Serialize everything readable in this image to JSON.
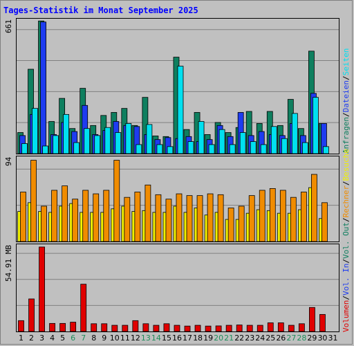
{
  "title": "Tages-Statistik im Monat September 2025",
  "colors": {
    "anfragen": "#0f7f5f",
    "dateien": "#1e3cf0",
    "seiten": "#00e0f0",
    "besuche": "#f0f000",
    "rechner": "#f08c00",
    "volumen": "#e00000",
    "weekend": "#1e8c5a",
    "weekday": "#000000",
    "grid": "#808080"
  },
  "legend_top": [
    {
      "text": "Anfragen",
      "color": "#0f7f5f"
    },
    {
      "text": "/",
      "color": "#000000"
    },
    {
      "text": "Dateien",
      "color": "#1e3cf0"
    },
    {
      "text": "/",
      "color": "#000000"
    },
    {
      "text": "Seiten",
      "color": "#00e0f0"
    }
  ],
  "legend_bottom": [
    {
      "text": "Volumen",
      "color": "#e00000"
    },
    {
      "text": "/",
      "color": "#000000"
    },
    {
      "text": "Vol. In",
      "color": "#1e3cf0"
    },
    {
      "text": "/",
      "color": "#000000"
    },
    {
      "text": "Vol. Out",
      "color": "#0f7f5f"
    },
    {
      "text": "/",
      "color": "#000000"
    },
    {
      "text": "Rechner",
      "color": "#f08c00"
    },
    {
      "text": "/",
      "color": "#000000"
    },
    {
      "text": "Besuche",
      "color": "#f0f000"
    }
  ],
  "ymax_labels": {
    "panel1": "661",
    "panel2": "94",
    "panel3": "54.91 MB"
  },
  "days": [
    "1",
    "2",
    "3",
    "4",
    "5",
    "6",
    "7",
    "8",
    "9",
    "10",
    "11",
    "12",
    "13",
    "14",
    "15",
    "16",
    "17",
    "18",
    "19",
    "20",
    "21",
    "22",
    "23",
    "24",
    "25",
    "26",
    "27",
    "28",
    "29",
    "30",
    "31"
  ],
  "weekend_days": [
    6,
    7,
    13,
    14,
    20,
    21,
    27,
    28
  ],
  "chart_data": [
    {
      "type": "bar",
      "name": "anfragen-dateien-seiten",
      "ylim": [
        0,
        661
      ],
      "grid": true,
      "series": [
        {
          "name": "Anfragen",
          "values": [
            105,
            420,
            660,
            160,
            275,
            125,
            325,
            140,
            190,
            205,
            225,
            140,
            280,
            88,
            85,
            480,
            120,
            205,
            95,
            155,
            105,
            130,
            210,
            150,
            210,
            140,
            270,
            125,
            510,
            150
          ]
        },
        {
          "name": "Dateien",
          "values": [
            90,
            195,
            655,
            95,
            155,
            110,
            240,
            95,
            115,
            160,
            140,
            135,
            95,
            70,
            80,
            75,
            85,
            60,
            70,
            140,
            85,
            205,
            90,
            110,
            95,
            90,
            150,
            90,
            300,
            150
          ]
        },
        {
          "name": "Seiten",
          "values": [
            50,
            225,
            38,
            90,
            195,
            55,
            125,
            90,
            130,
            105,
            150,
            45,
            145,
            45,
            35,
            435,
            60,
            160,
            45,
            120,
            45,
            105,
            60,
            45,
            135,
            75,
            200,
            55,
            280,
            35
          ]
        }
      ]
    },
    {
      "type": "bar",
      "name": "rechner-besuche",
      "ylim": [
        0,
        94
      ],
      "grid": true,
      "series": [
        {
          "name": "Rechner",
          "values": [
            56,
            92,
            40,
            58,
            63,
            48,
            58,
            54,
            58,
            92,
            50,
            56,
            64,
            53,
            48,
            54,
            52,
            52,
            54,
            53,
            38,
            40,
            52,
            58,
            60,
            58,
            50,
            56,
            76,
            44
          ]
        },
        {
          "name": "Besuche",
          "values": [
            34,
            44,
            34,
            33,
            40,
            43,
            33,
            33,
            33,
            37,
            40,
            34,
            35,
            33,
            33,
            40,
            33,
            38,
            30,
            33,
            25,
            25,
            32,
            36,
            35,
            32,
            32,
            36,
            61,
            26
          ]
        }
      ]
    },
    {
      "type": "bar",
      "name": "volumen",
      "ylim": [
        0,
        54.91
      ],
      "ylabel": "MB",
      "grid": true,
      "series": [
        {
          "name": "Volumen",
          "values": [
            7.0,
            21.0,
            54.5,
            5.2,
            5.2,
            6.0,
            30.5,
            5.0,
            5.0,
            4.0,
            4.0,
            7.0,
            5.0,
            4.0,
            5.0,
            4.0,
            3.5,
            4.0,
            3.5,
            3.6,
            4.0,
            4.2,
            4.0,
            4.0,
            5.6,
            5.6,
            4.0,
            5.0,
            15.5,
            11.0
          ]
        }
      ]
    }
  ]
}
